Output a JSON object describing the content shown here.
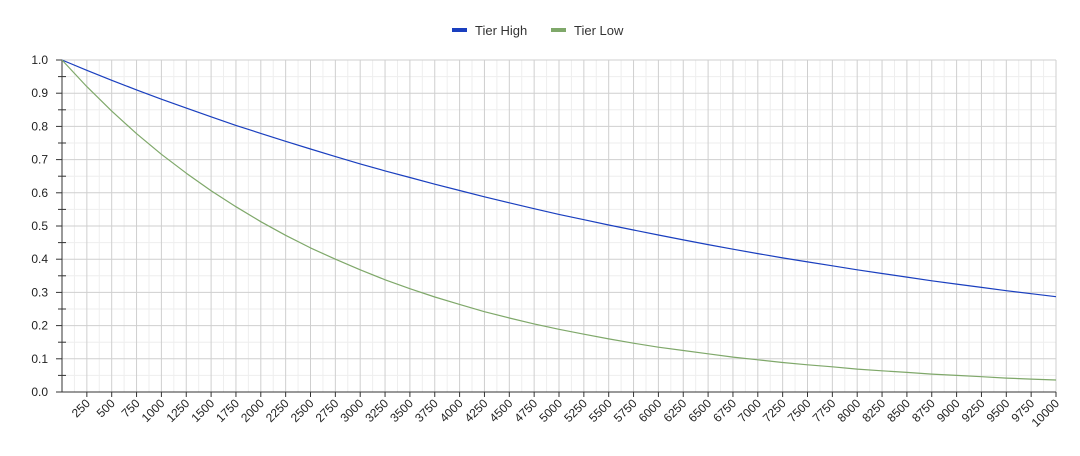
{
  "chart_data": {
    "type": "line",
    "title": "",
    "xlabel": "",
    "ylabel": "",
    "xlim": [
      0,
      10000
    ],
    "ylim": [
      0,
      1.0
    ],
    "x_ticks": [
      250,
      500,
      750,
      1000,
      1250,
      1500,
      1750,
      2000,
      2250,
      2500,
      2750,
      3000,
      3250,
      3500,
      3750,
      4000,
      4250,
      4500,
      4750,
      5000,
      5250,
      5500,
      5750,
      6000,
      6250,
      6500,
      6750,
      7000,
      7250,
      7500,
      7750,
      8000,
      8250,
      8500,
      8750,
      9000,
      9250,
      9500,
      9750,
      10000
    ],
    "x_tick_labels": [
      "250",
      "500",
      "750",
      "1000",
      "1250",
      "1500",
      "1750",
      "2000",
      "2250",
      "2500",
      "2750",
      "3000",
      "3250",
      "3500",
      "3750",
      "4000",
      "4250",
      "4500",
      "4750",
      "5000",
      "5250",
      "5500",
      "5750",
      "6000",
      "6250",
      "6500",
      "6750",
      "7000",
      "7250",
      "7500",
      "7750",
      "8000",
      "8250",
      "8500",
      "8750",
      "9000",
      "9250",
      "9500",
      "9750",
      "10000"
    ],
    "y_ticks": [
      0,
      0.1,
      0.2,
      0.3,
      0.4,
      0.5,
      0.6,
      0.7,
      0.8,
      0.9,
      1.0
    ],
    "y_tick_labels": [
      "0.0",
      "0.1",
      "0.2",
      "0.3",
      "0.4",
      "0.5",
      "0.6",
      "0.7",
      "0.8",
      "0.9",
      "1.0"
    ],
    "grid": true,
    "legend_position": "top-center",
    "x": [
      0,
      250,
      500,
      750,
      1000,
      1250,
      1500,
      1750,
      2000,
      2250,
      2500,
      2750,
      3000,
      3250,
      3500,
      3750,
      4000,
      4250,
      4500,
      4750,
      5000,
      5250,
      5500,
      5750,
      6000,
      6250,
      6500,
      6750,
      7000,
      7250,
      7500,
      7750,
      8000,
      8250,
      8500,
      8750,
      9000,
      9250,
      9500,
      9750,
      10000
    ],
    "series": [
      {
        "name": "Tier High",
        "color": "#1a3fbf",
        "values": [
          1.0,
          0.969,
          0.939,
          0.91,
          0.882,
          0.855,
          0.829,
          0.803,
          0.779,
          0.755,
          0.732,
          0.709,
          0.687,
          0.666,
          0.646,
          0.626,
          0.607,
          0.588,
          0.57,
          0.552,
          0.535,
          0.519,
          0.503,
          0.488,
          0.473,
          0.458,
          0.444,
          0.43,
          0.417,
          0.404,
          0.392,
          0.38,
          0.368,
          0.357,
          0.346,
          0.335,
          0.325,
          0.315,
          0.305,
          0.296,
          0.287
        ]
      },
      {
        "name": "Tier Low",
        "color": "#7fa86a",
        "values": [
          1.0,
          0.92,
          0.846,
          0.778,
          0.716,
          0.659,
          0.606,
          0.558,
          0.513,
          0.472,
          0.434,
          0.4,
          0.368,
          0.338,
          0.311,
          0.286,
          0.264,
          0.242,
          0.223,
          0.205,
          0.189,
          0.174,
          0.16,
          0.147,
          0.135,
          0.125,
          0.115,
          0.105,
          0.097,
          0.089,
          0.082,
          0.076,
          0.069,
          0.064,
          0.059,
          0.054,
          0.05,
          0.046,
          0.042,
          0.039,
          0.036
        ]
      }
    ]
  }
}
